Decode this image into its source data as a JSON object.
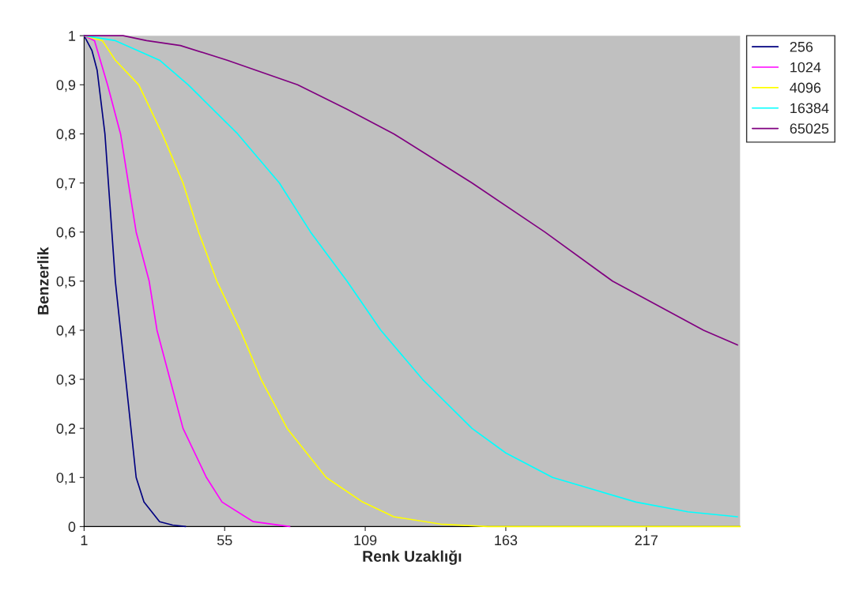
{
  "chart_data": {
    "type": "line",
    "xlabel": "Renk Uzaklığı",
    "ylabel": "Benzerlik",
    "xlim": [
      1,
      253
    ],
    "xticks": [
      1,
      55,
      109,
      163,
      217
    ],
    "ylim": [
      0,
      1
    ],
    "yticks": [
      0,
      {
        "value": 0.1,
        "label": "0,1"
      },
      {
        "value": 0.2,
        "label": "0,2"
      },
      {
        "value": 0.3,
        "label": "0,3"
      },
      {
        "value": 0.4,
        "label": "0,4"
      },
      {
        "value": 0.5,
        "label": "0,5"
      },
      {
        "value": 0.6,
        "label": "0,6"
      },
      {
        "value": 0.7,
        "label": "0,7"
      },
      {
        "value": 0.8,
        "label": "0,8"
      },
      {
        "value": 0.9,
        "label": "0,9"
      },
      1
    ],
    "grid": false,
    "legend": "right",
    "marker": "none",
    "line_style": "solid",
    "series": [
      {
        "name": "256",
        "color": "#000080",
        "x": [
          1,
          4,
          6,
          9,
          13,
          17,
          21,
          24,
          30,
          35,
          40
        ],
        "values": [
          1,
          0.97,
          0.93,
          0.8,
          0.5,
          0.3,
          0.1,
          0.05,
          0.01,
          0.003,
          0
        ]
      },
      {
        "name": "1024",
        "color": "#ff00ff",
        "x": [
          1,
          5,
          10,
          15,
          21,
          26,
          29,
          34,
          39,
          48,
          54,
          66,
          80
        ],
        "values": [
          1,
          0.99,
          0.9,
          0.8,
          0.6,
          0.5,
          0.4,
          0.3,
          0.2,
          0.1,
          0.05,
          0.01,
          0
        ]
      },
      {
        "name": "4096",
        "color": "#ffff00",
        "x": [
          1,
          8,
          13,
          22,
          31,
          39,
          45,
          52,
          61,
          69,
          79,
          94,
          108,
          120,
          138,
          156,
          253
        ],
        "values": [
          1,
          0.99,
          0.95,
          0.9,
          0.8,
          0.7,
          0.6,
          0.5,
          0.4,
          0.3,
          0.2,
          0.1,
          0.05,
          0.02,
          0.005,
          0,
          0
        ]
      },
      {
        "name": "16384",
        "color": "#00ffff",
        "x": [
          1,
          13,
          30,
          41,
          60,
          76,
          88,
          102,
          115,
          131,
          150,
          163,
          181,
          213,
          233,
          252
        ],
        "values": [
          1,
          0.99,
          0.95,
          0.9,
          0.8,
          0.7,
          0.6,
          0.5,
          0.4,
          0.3,
          0.2,
          0.15,
          0.1,
          0.05,
          0.03,
          0.02
        ]
      },
      {
        "name": "65025",
        "color": "#800080",
        "x": [
          1,
          16,
          25,
          38,
          56,
          83,
          102,
          120,
          150,
          178,
          204,
          239,
          252
        ],
        "values": [
          1,
          1,
          0.99,
          0.98,
          0.95,
          0.9,
          0.85,
          0.8,
          0.7,
          0.6,
          0.5,
          0.4,
          0.37
        ]
      }
    ]
  }
}
